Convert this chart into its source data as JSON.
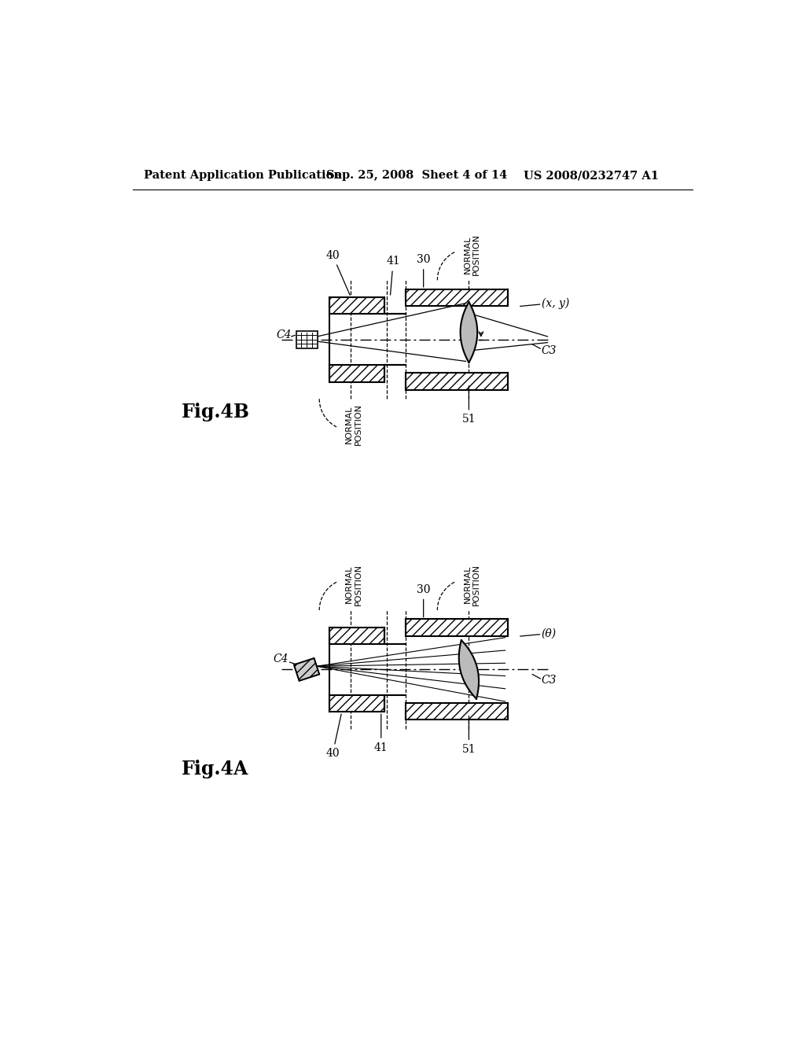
{
  "bg_color": "#ffffff",
  "line_color": "#000000",
  "header_left": "Patent Application Publication",
  "header_mid": "Sep. 25, 2008  Sheet 4 of 14",
  "header_right": "US 2008/0232747 A1",
  "fig4b_label": "Fig.4B",
  "fig4a_label": "Fig.4A"
}
